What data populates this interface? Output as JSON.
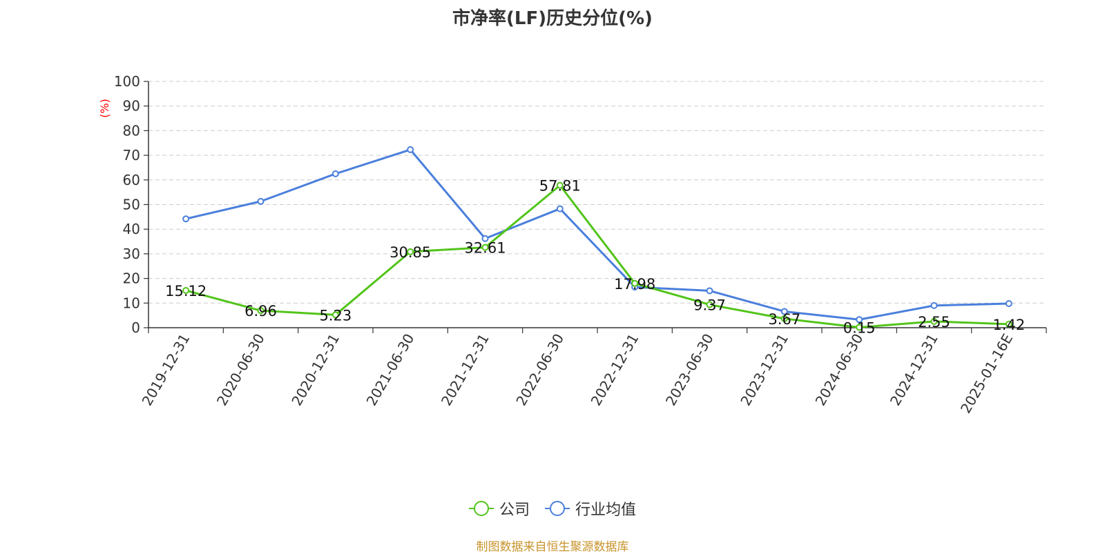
{
  "chart_data": {
    "type": "line",
    "title": "市净率(LF)历史分位(%)",
    "ylabel": "(%)",
    "xlabel": "",
    "ylim": [
      0,
      100
    ],
    "yticks": [
      0,
      10,
      20,
      30,
      40,
      50,
      60,
      70,
      80,
      90,
      100
    ],
    "grid": true,
    "legend_position": "bottom",
    "categories": [
      "2019-12-31",
      "2020-06-30",
      "2020-12-31",
      "2021-06-30",
      "2021-12-31",
      "2022-06-30",
      "2022-12-31",
      "2023-06-30",
      "2023-12-31",
      "2024-06-30",
      "2024-12-31",
      "2025-01-16E"
    ],
    "series": [
      {
        "name": "公司",
        "color": "#52c41a",
        "values": [
          15.12,
          6.96,
          5.23,
          30.85,
          32.61,
          57.81,
          17.98,
          9.37,
          3.67,
          0.15,
          2.55,
          1.42
        ],
        "labels": [
          "15.12",
          "6.96",
          "5.23",
          "30.85",
          "32.61",
          "57.81",
          "17.98",
          "9.37",
          "3.67",
          "0.15",
          "2.55",
          "1.42"
        ]
      },
      {
        "name": "行业均值",
        "color": "#4a7fdc",
        "values": [
          44.2,
          51.3,
          62.5,
          72.3,
          36.2,
          48.3,
          16.5,
          15.0,
          6.6,
          3.3,
          9.0,
          9.8
        ]
      }
    ],
    "source": "制图数据来自恒生聚源数据库"
  }
}
